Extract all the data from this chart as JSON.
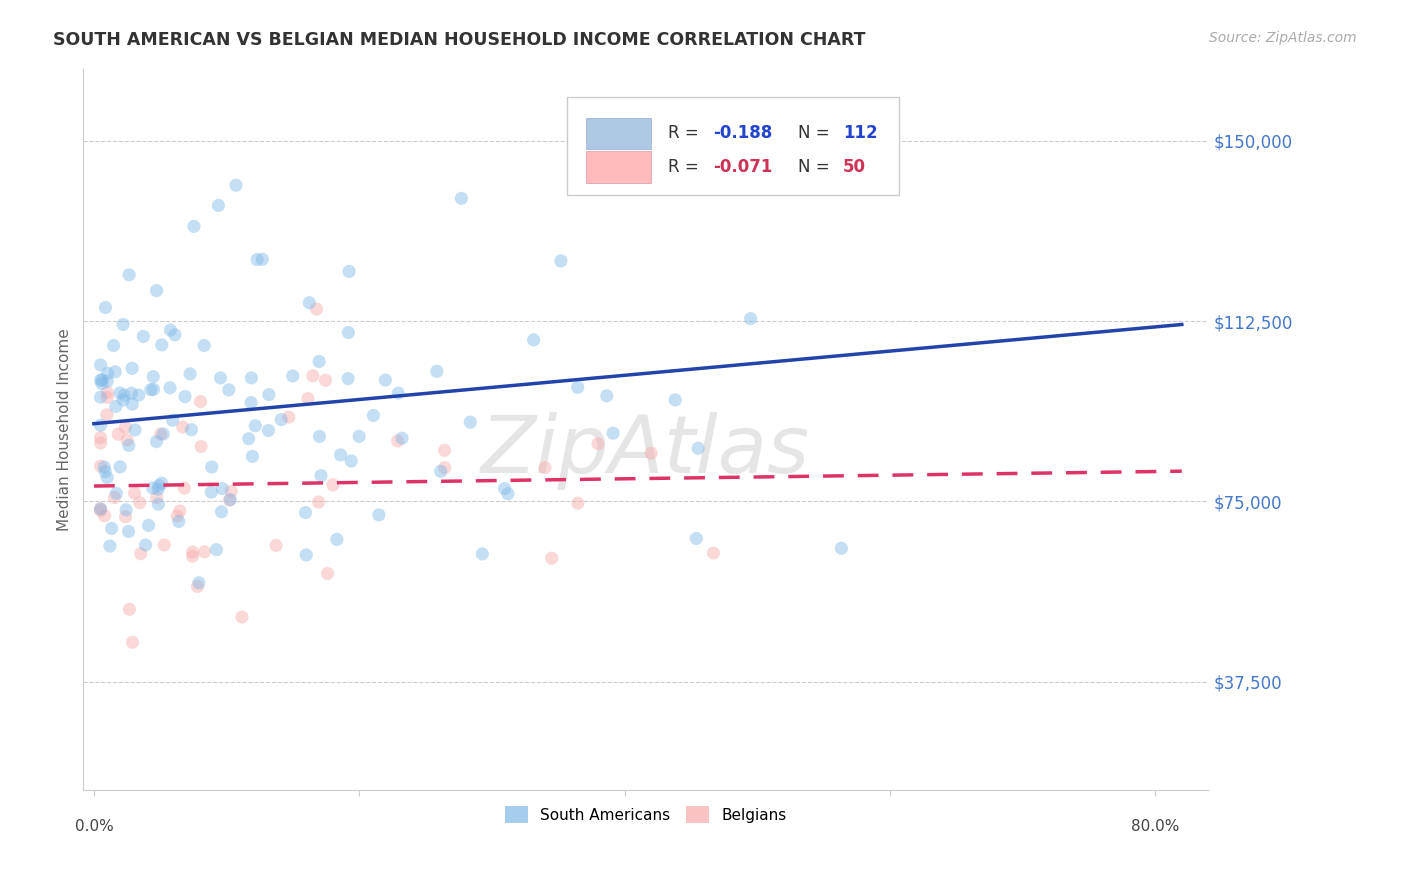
{
  "title": "SOUTH AMERICAN VS BELGIAN MEDIAN HOUSEHOLD INCOME CORRELATION CHART",
  "source": "Source: ZipAtlas.com",
  "ylabel": "Median Household Income",
  "y_ticks": [
    37500,
    75000,
    112500,
    150000
  ],
  "y_tick_labels": [
    "$37,500",
    "$75,000",
    "$112,500",
    "$150,000"
  ],
  "y_min": 15000,
  "y_max": 165000,
  "x_min": -0.008,
  "x_max": 0.84,
  "south_american_R": -0.188,
  "south_american_N": 112,
  "belgian_R": -0.071,
  "belgian_N": 50,
  "sa_color": "#7EB8E8",
  "be_color": "#F7AAAA",
  "sa_line_color": "#2244AA",
  "be_line_color": "#DD3366",
  "grid_color": "#CCCCCC",
  "title_color": "#333333",
  "source_color": "#AAAAAA",
  "marker_size": 90,
  "marker_alpha": 0.45,
  "line_width": 2.5,
  "watermark": "ZipAtlas",
  "background": "#FFFFFF",
  "legend_box_color": "#EEEEEE",
  "sa_legend_color": "#99BBDD",
  "be_legend_color": "#FFAAAA",
  "legend_R_sa_color": "#2244CC",
  "legend_R_be_color": "#CC3355",
  "legend_N_sa_color": "#2244CC",
  "legend_N_be_color": "#CC3355"
}
